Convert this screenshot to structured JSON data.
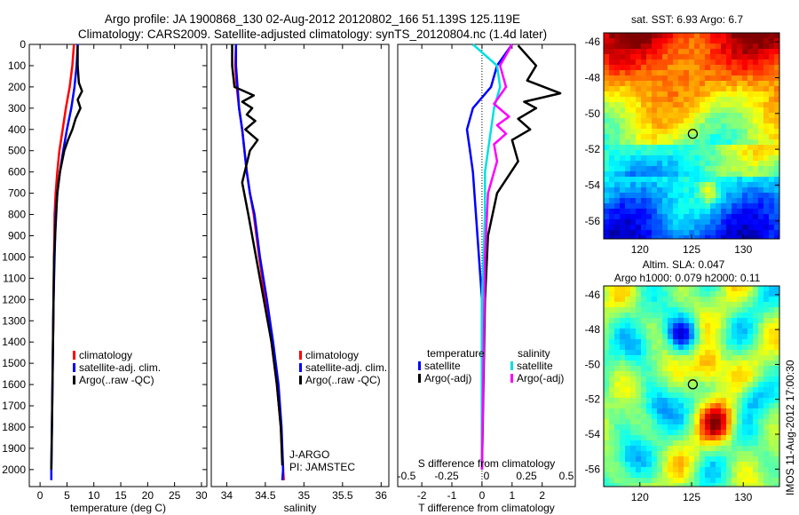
{
  "header": {
    "line1": "Argo profile: JA 1900868_130 02-Aug-2012 20120802_166 51.139S 125.119E",
    "line2": "Climatology: CARS2009. Satellite-adjusted climatology: synTS_20120804.nc (1.4d later)"
  },
  "colors": {
    "climatology": "#ff0000",
    "satellite": "#0000ff",
    "argo": "#000000",
    "salinity_sat": "#00e0e0",
    "salinity_argo": "#ff00ff"
  },
  "chart_data": [
    {
      "type": "line",
      "id": "temperature",
      "xlabel": "temperature (deg C)",
      "ylabel": "",
      "xlim": [
        -2,
        31
      ],
      "ylim": [
        2080,
        0
      ],
      "y_reversed": true,
      "xticks": [
        0,
        5,
        10,
        15,
        20,
        25,
        30
      ],
      "yticks": [
        0,
        100,
        200,
        300,
        400,
        500,
        600,
        700,
        800,
        900,
        1000,
        1100,
        1200,
        1300,
        1400,
        1500,
        1600,
        1700,
        1800,
        1900,
        2000
      ],
      "legend": [
        "climatology",
        "satellite-adj. clim.",
        "Argo(..raw -QC)"
      ],
      "series": [
        {
          "name": "climatology",
          "color": "#ff0000",
          "x": [
            6.3,
            6.0,
            5.5,
            4.8,
            4.2,
            3.6,
            3.2,
            2.9,
            2.7,
            2.6,
            2.5,
            2.4,
            2.4
          ],
          "y": [
            0,
            100,
            200,
            300,
            400,
            500,
            600,
            700,
            800,
            1000,
            1200,
            1400,
            1450
          ]
        },
        {
          "name": "satellite-adj. clim.",
          "color": "#0000ff",
          "x": [
            7.0,
            6.8,
            6.4,
            5.8,
            5.0,
            4.3,
            3.7,
            3.2,
            2.9,
            2.7,
            2.5,
            2.4,
            2.3,
            2.2,
            2.1,
            2.1
          ],
          "y": [
            0,
            100,
            200,
            300,
            400,
            500,
            600,
            700,
            800,
            1000,
            1200,
            1400,
            1600,
            1800,
            2000,
            2050
          ]
        },
        {
          "name": "Argo(..raw -QC)",
          "color": "#000000",
          "x": [
            7.0,
            7.0,
            7.2,
            7.8,
            7.0,
            7.5,
            6.6,
            6.0,
            5.2,
            4.5,
            3.7,
            3.2,
            3.0,
            2.8,
            2.6,
            2.5,
            2.4,
            2.3,
            2.2,
            2.1
          ],
          "y": [
            5,
            100,
            180,
            220,
            260,
            300,
            350,
            400,
            450,
            500,
            600,
            700,
            800,
            900,
            1000,
            1200,
            1400,
            1600,
            1800,
            2000
          ]
        }
      ]
    },
    {
      "type": "line",
      "id": "salinity",
      "xlabel": "salinity",
      "xlim": [
        33.8,
        36.1
      ],
      "ylim": [
        2080,
        0
      ],
      "xticks": [
        34,
        34.5,
        35,
        35.5,
        36
      ],
      "legend": [
        "climatology",
        "satellite-adj. clim.",
        "Argo(..raw -QC)"
      ],
      "annotations": [
        "J-ARGO",
        "PI: JAMSTEC"
      ],
      "series": [
        {
          "name": "climatology",
          "color": "#ff0000",
          "x": [
            34.12,
            34.11,
            34.13,
            34.16,
            34.2,
            34.23,
            34.26,
            34.3,
            34.35,
            34.42,
            34.5,
            34.58,
            34.65,
            34.7,
            34.73,
            34.74
          ],
          "y": [
            0,
            100,
            200,
            300,
            400,
            500,
            600,
            700,
            800,
            1000,
            1200,
            1400,
            1600,
            1800,
            2000,
            2050
          ]
        },
        {
          "name": "satellite-adj. clim.",
          "color": "#0000ff",
          "x": [
            34.12,
            34.12,
            34.14,
            34.16,
            34.2,
            34.23,
            34.26,
            34.3,
            34.36,
            34.43,
            34.52,
            34.6,
            34.67,
            34.71,
            34.73,
            34.72
          ],
          "y": [
            0,
            100,
            200,
            300,
            400,
            500,
            600,
            700,
            800,
            1000,
            1200,
            1400,
            1600,
            1800,
            2000,
            2050
          ]
        },
        {
          "name": "Argo(..raw -QC)",
          "color": "#000000",
          "x": [
            34.07,
            34.07,
            34.1,
            34.35,
            34.2,
            34.33,
            34.26,
            34.37,
            34.24,
            34.4,
            34.3,
            34.2,
            34.28,
            34.38,
            34.48,
            34.58,
            34.65,
            34.7,
            34.72
          ],
          "y": [
            0,
            100,
            200,
            240,
            270,
            300,
            330,
            360,
            400,
            450,
            500,
            650,
            800,
            1000,
            1200,
            1400,
            1600,
            1800,
            1980
          ]
        }
      ]
    },
    {
      "type": "line",
      "id": "difference",
      "xlabel": "T difference from climatology",
      "xlabel_top": "S difference from climatology",
      "xlim": [
        -2.8,
        3.1
      ],
      "ylim": [
        2080,
        0
      ],
      "xticks": [
        -2,
        -1,
        0,
        1,
        2
      ],
      "xticks_top": [
        -0.5,
        -0.25,
        0,
        0.25,
        0.5
      ],
      "legend_temperature": {
        "title": "temperature",
        "items": [
          "satellite",
          "Argo(-adj)"
        ]
      },
      "legend_salinity": {
        "title": "salinity",
        "items": [
          "satellite",
          "Argo(-adj)"
        ]
      },
      "series": [
        {
          "name": "temperature satellite",
          "color": "#0000ff",
          "x": [
            1.0,
            0.5,
            0.3,
            -0.3,
            -0.5,
            -0.4,
            -0.3,
            -0.2,
            -0.1,
            0,
            0
          ],
          "y": [
            0,
            100,
            200,
            300,
            400,
            500,
            600,
            800,
            1000,
            1200,
            2000
          ]
        },
        {
          "name": "temperature Argo(-adj)",
          "color": "#000000",
          "x": [
            1.2,
            1.8,
            1.5,
            2.6,
            1.4,
            1.8,
            1.2,
            1.6,
            1.0,
            1.2,
            0.5,
            0.2,
            0.1,
            0
          ],
          "y": [
            5,
            100,
            170,
            230,
            270,
            300,
            350,
            400,
            450,
            550,
            700,
            900,
            1200,
            2000
          ]
        },
        {
          "name": "salinity satellite",
          "color": "#00e0e0",
          "x": [
            -0.3,
            0.5,
            0.6,
            0.4,
            0.3,
            0.2,
            0.1,
            0.1,
            0.05,
            0,
            0
          ],
          "y": [
            0,
            100,
            200,
            300,
            400,
            500,
            600,
            800,
            1000,
            1200,
            2000
          ]
        },
        {
          "name": "salinity Argo(-adj)",
          "color": "#ff00ff",
          "x": [
            1.0,
            0.6,
            0.8,
            0.4,
            0.9,
            0.5,
            0.8,
            0.4,
            0.5,
            0.2,
            0.1,
            0
          ],
          "y": [
            0,
            100,
            200,
            280,
            340,
            380,
            420,
            470,
            550,
            700,
            1000,
            2000
          ]
        }
      ]
    },
    {
      "type": "heatmap",
      "id": "sst-map",
      "title": "sat. SST: 6.93 Argo: 6.7",
      "xlim": [
        116.5,
        133.5
      ],
      "ylim": [
        -57,
        -45.5
      ],
      "xticks": [
        120,
        125,
        130
      ],
      "yticks": [
        -46,
        -48,
        -50,
        -52,
        -54,
        -56
      ],
      "marker": {
        "lon": 125.119,
        "lat": -51.139
      }
    },
    {
      "type": "heatmap",
      "id": "sla-map",
      "title_line1": "Altim. SLA: 0.047",
      "title_line2": "Argo h1000: 0.079 h2000: 0.11",
      "xlim": [
        116.5,
        133.5
      ],
      "ylim": [
        -57,
        -45.5
      ],
      "xticks": [
        120,
        125,
        130
      ],
      "yticks": [
        -46,
        -48,
        -50,
        -52,
        -54,
        -56
      ],
      "marker": {
        "lon": 125.119,
        "lat": -51.139
      }
    }
  ],
  "footer": {
    "stamp": "IMOS 11-Aug-2012 17:00:30"
  }
}
